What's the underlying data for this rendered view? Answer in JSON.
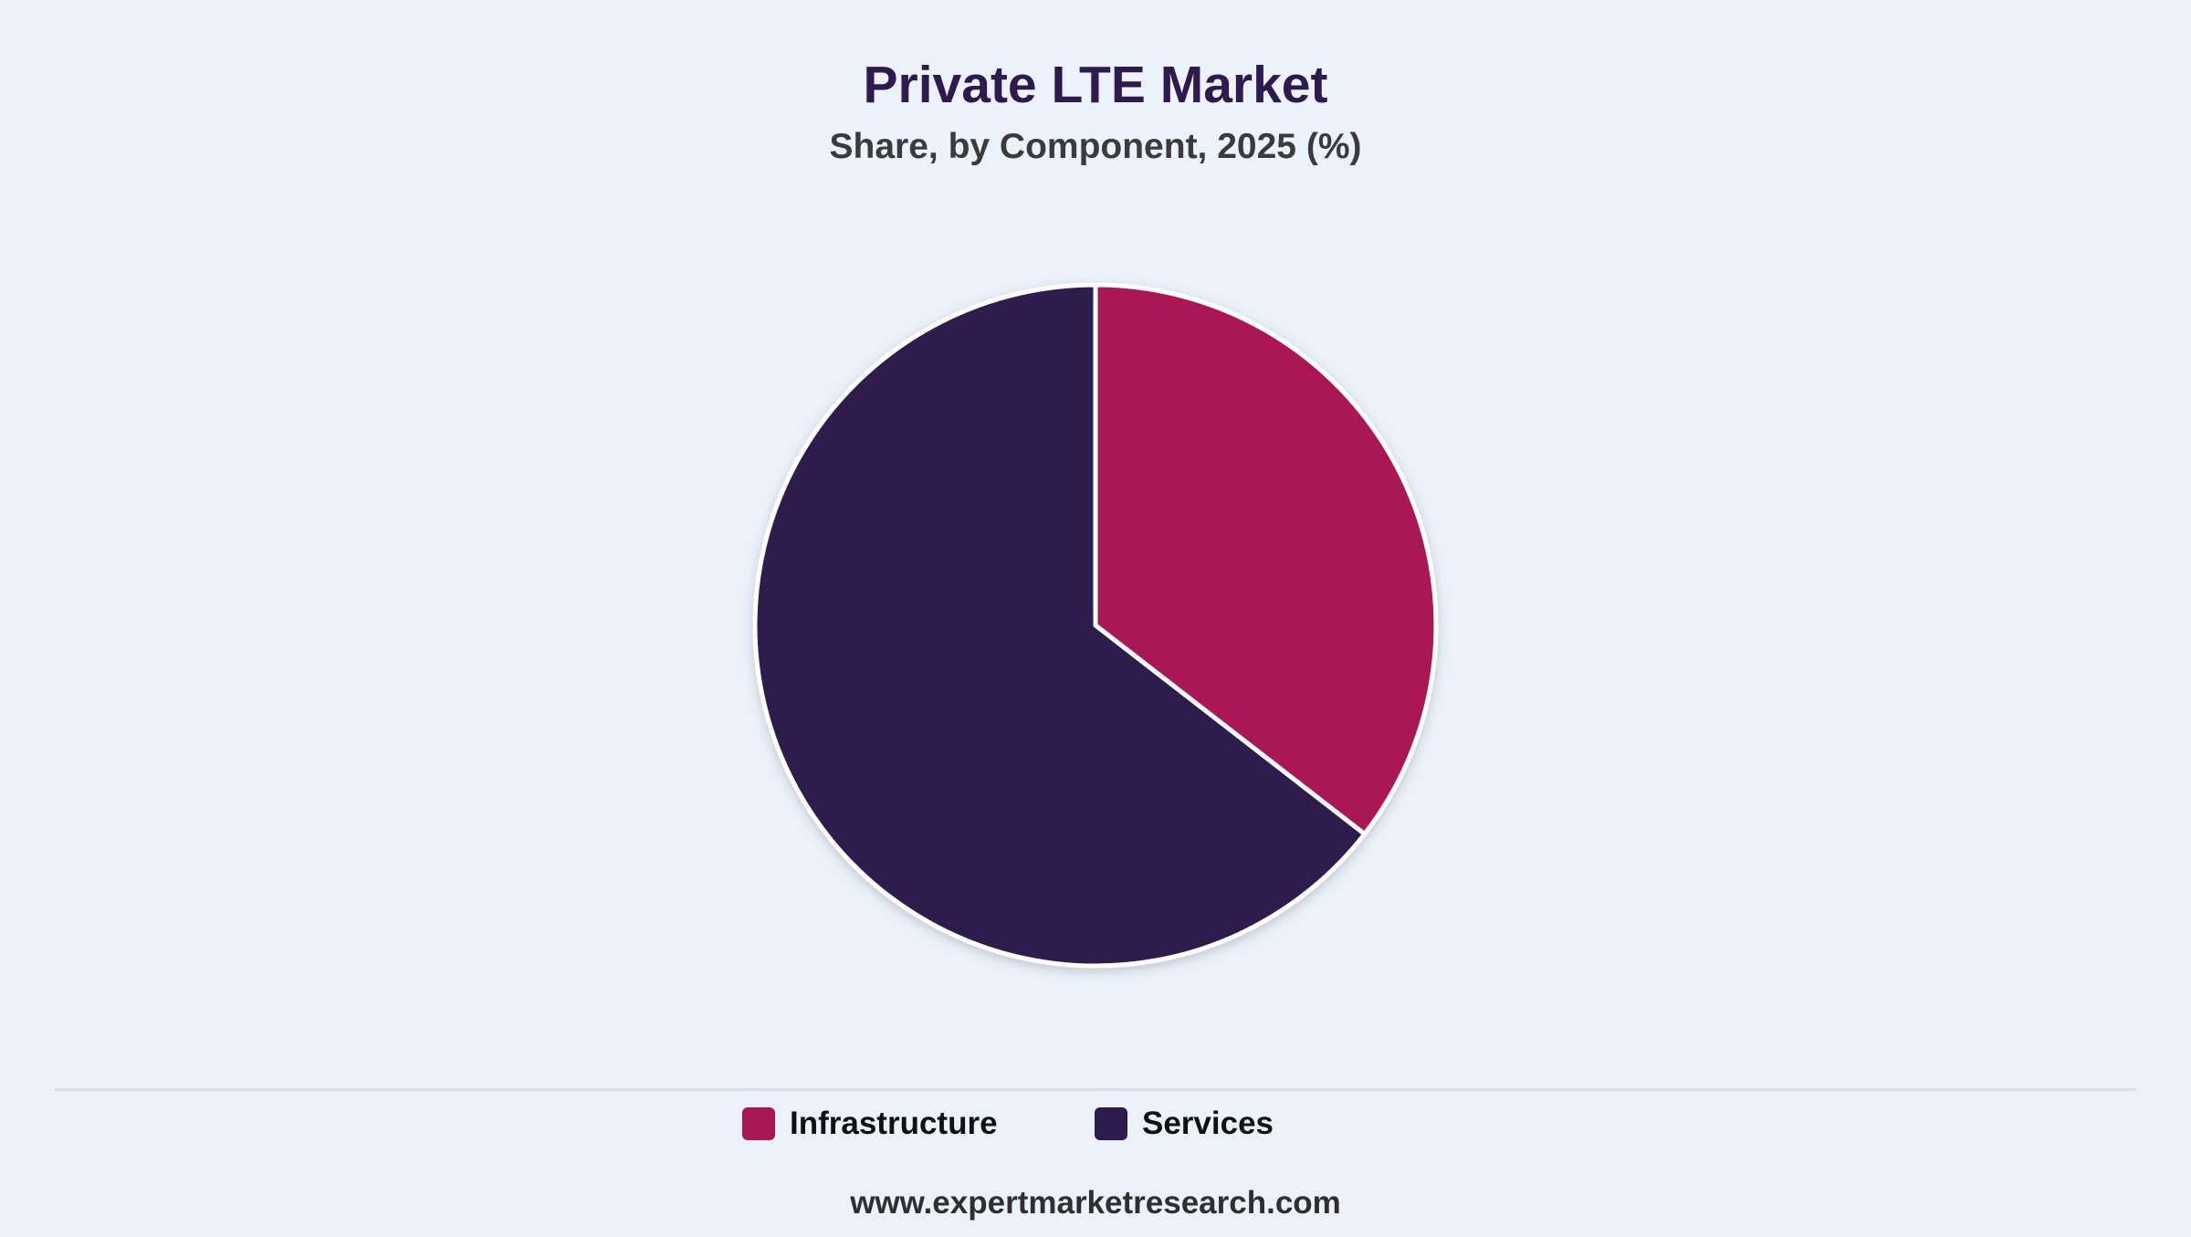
{
  "title": "Private LTE Market",
  "subtitle": "Share, by Component, 2025 (%)",
  "footer": "www.expertmarketresearch.com",
  "colors": {
    "background": "#ebf2fc",
    "infrastructure": "#ab1656",
    "services": "#2e1a4e"
  },
  "chart_data": {
    "type": "pie",
    "title": "Private LTE Market",
    "subtitle": "Share, by Component, 2025 (%)",
    "categories": [
      "Infrastructure",
      "Services"
    ],
    "values": [
      35.5,
      64.5
    ],
    "colors": [
      "#ab1656",
      "#2e1a4e"
    ],
    "start_angle": "top",
    "direction": "clockwise",
    "legend_position": "bottom"
  },
  "legend": {
    "items": [
      {
        "label": "Infrastructure",
        "color": "#ab1656"
      },
      {
        "label": "Services",
        "color": "#2e1a4e"
      }
    ]
  }
}
